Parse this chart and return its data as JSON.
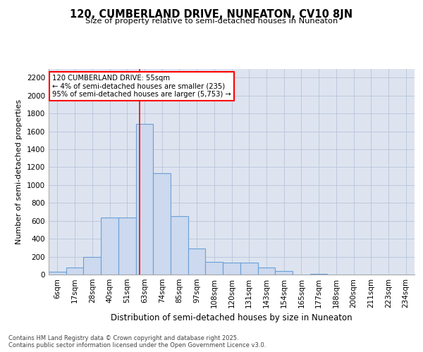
{
  "title": "120, CUMBERLAND DRIVE, NUNEATON, CV10 8JN",
  "subtitle": "Size of property relative to semi-detached houses in Nuneaton",
  "xlabel": "Distribution of semi-detached houses by size in Nuneaton",
  "ylabel": "Number of semi-detached properties",
  "bin_labels": [
    "6sqm",
    "17sqm",
    "28sqm",
    "40sqm",
    "51sqm",
    "63sqm",
    "74sqm",
    "85sqm",
    "97sqm",
    "108sqm",
    "120sqm",
    "131sqm",
    "143sqm",
    "154sqm",
    "165sqm",
    "177sqm",
    "188sqm",
    "200sqm",
    "211sqm",
    "223sqm",
    "234sqm"
  ],
  "bar_values": [
    30,
    80,
    200,
    635,
    635,
    1680,
    1130,
    650,
    290,
    145,
    130,
    130,
    80,
    40,
    0,
    10,
    0,
    0,
    0,
    0,
    0
  ],
  "bar_color": "#ccd9ee",
  "bar_edge_color": "#6a9fd8",
  "vline_x_index": 4.73,
  "vline_color": "red",
  "annotation_text": "120 CUMBERLAND DRIVE: 55sqm\n← 4% of semi-detached houses are smaller (235)\n95% of semi-detached houses are larger (5,753) →",
  "annotation_box_color": "white",
  "annotation_border_color": "red",
  "ylim": [
    0,
    2300
  ],
  "yticks": [
    0,
    200,
    400,
    600,
    800,
    1000,
    1200,
    1400,
    1600,
    1800,
    2000,
    2200
  ],
  "grid_color": "#b8c4d8",
  "bg_color": "#dde4f0",
  "footer_line1": "Contains HM Land Registry data © Crown copyright and database right 2025.",
  "footer_line2": "Contains public sector information licensed under the Open Government Licence v3.0."
}
